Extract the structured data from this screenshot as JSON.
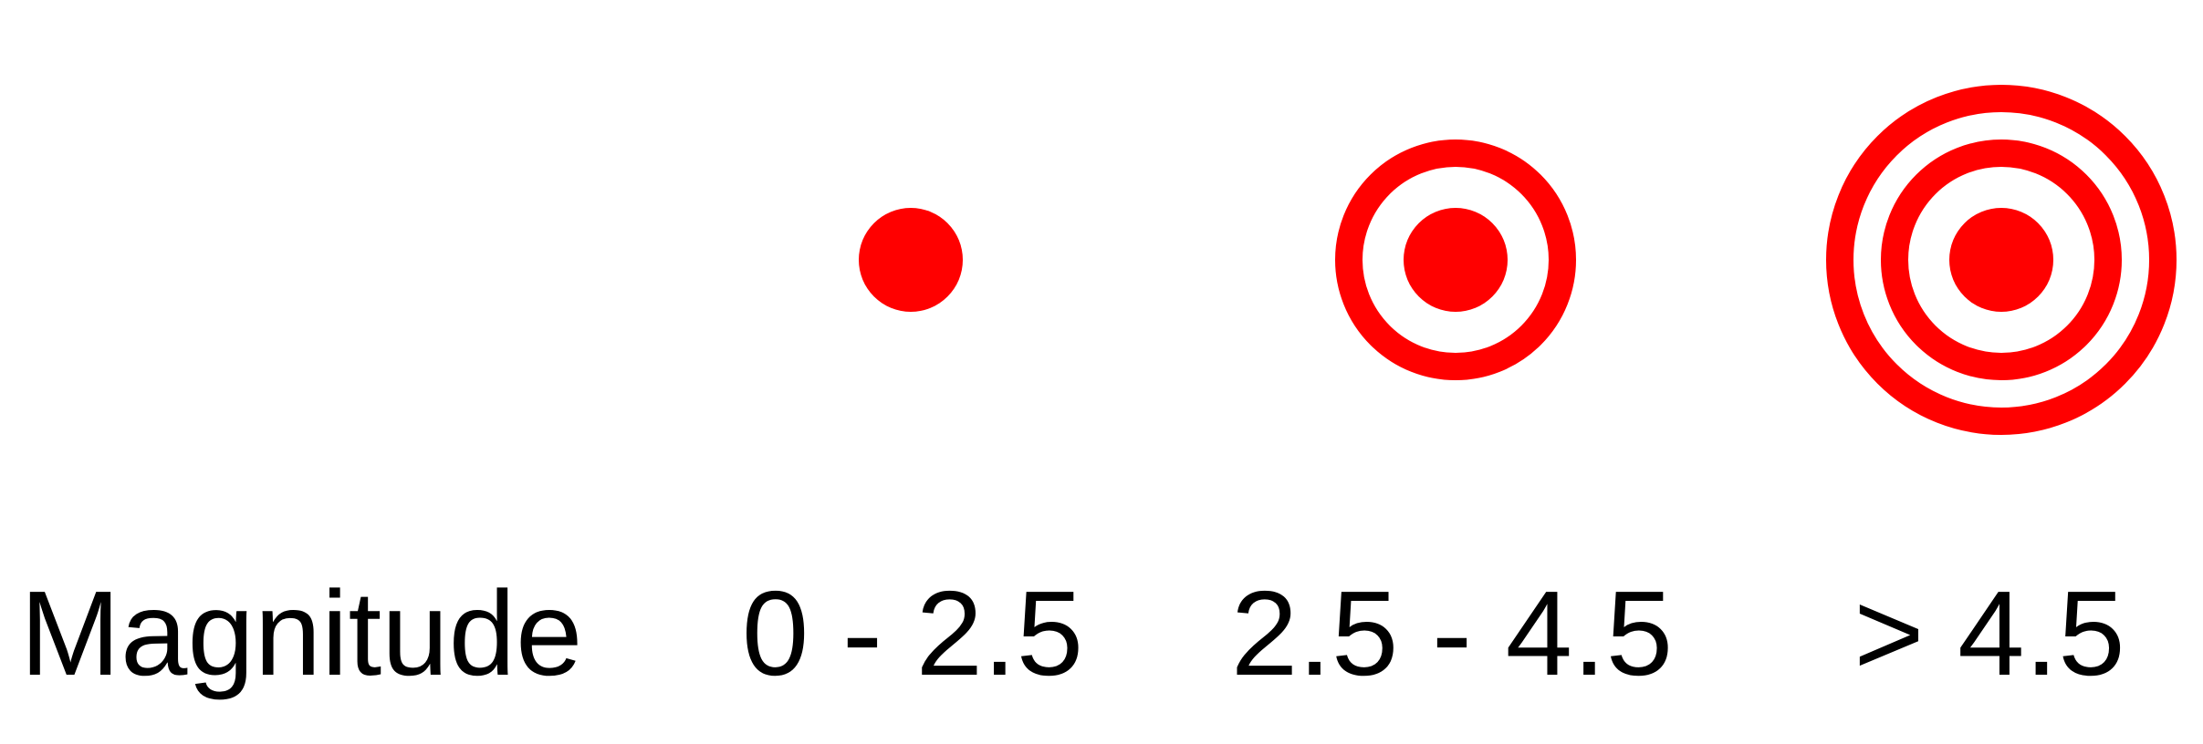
{
  "legend": {
    "title": "Magnitude",
    "symbol_color": "#ff0000",
    "classes": [
      {
        "label": "0 - 2.5",
        "rings": 0
      },
      {
        "label": "2.5 - 4.5",
        "rings": 1
      },
      {
        "label": "> 4.5",
        "rings": 2
      }
    ]
  }
}
